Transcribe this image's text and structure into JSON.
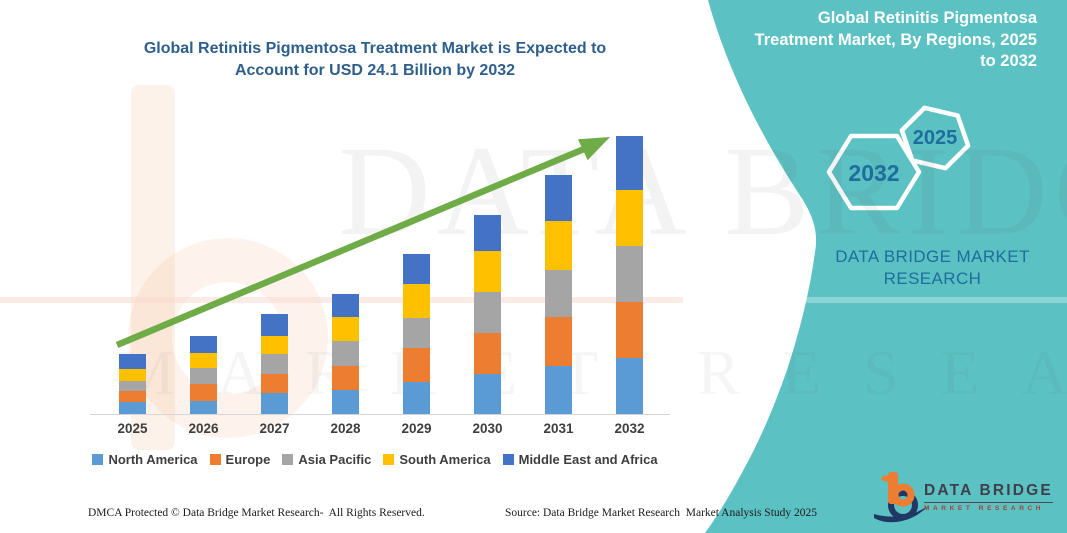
{
  "main_title_line1": "Global Retinitis Pigmentosa Treatment Market is Expected to",
  "main_title_line2": "Account for USD 24.1 Billion by 2032",
  "chart_data": {
    "type": "bar",
    "stacked": true,
    "title": "Global Retinitis Pigmentosa Treatment Market is Expected to Account for USD 24.1 Billion by 2032",
    "unit": "USD Billion",
    "categories": [
      "2025",
      "2026",
      "2027",
      "2028",
      "2029",
      "2030",
      "2031",
      "2032"
    ],
    "series": [
      {
        "name": "North America",
        "color": "#5B9BD5",
        "values": [
          1.0,
          1.1,
          1.8,
          2.1,
          2.8,
          3.5,
          4.2,
          4.9
        ]
      },
      {
        "name": "Europe",
        "color": "#ED7D31",
        "values": [
          1.0,
          1.5,
          1.7,
          2.1,
          2.9,
          3.5,
          4.2,
          4.8
        ]
      },
      {
        "name": "Asia Pacific",
        "color": "#A5A5A5",
        "values": [
          0.9,
          1.4,
          1.7,
          2.1,
          2.6,
          3.6,
          4.1,
          4.9
        ]
      },
      {
        "name": "South America",
        "color": "#FFC000",
        "values": [
          1.0,
          1.3,
          1.6,
          2.1,
          3.0,
          3.5,
          4.2,
          4.8
        ]
      },
      {
        "name": "Middle East and Africa",
        "color": "#4472C4",
        "values": [
          1.3,
          1.5,
          1.9,
          2.0,
          2.6,
          3.2,
          4.0,
          4.7
        ]
      }
    ],
    "totals": [
      5.2,
      6.8,
      8.7,
      10.4,
      13.9,
      17.3,
      20.7,
      24.1
    ],
    "ylim": [
      0,
      24.1
    ],
    "y_axis_visible": false,
    "gridlines": false,
    "legend_position": "bottom",
    "trend_arrow": {
      "present": true,
      "color": "#6FAC47",
      "direction": "up-right"
    }
  },
  "side_panel": {
    "background_color": "#5CC1C3",
    "heading_lines": [
      "Global Retinitis Pigmentosa",
      "Treatment Market, By Regions, 2025",
      "to 2032"
    ],
    "hexagon_back_label": "2032",
    "hexagon_front_label": "2025",
    "brand_line1": "DATA BRIDGE MARKET",
    "brand_line2": "RESEARCH"
  },
  "watermark": {
    "line1": "DATA BRIDGE",
    "line2": "MARKET RESEARCH"
  },
  "footer": {
    "dmca": "DMCA Protected © Data Bridge Market Research-  All Rights Reserved.",
    "source": "Source: Data Bridge Market Research  Market Analysis Study 2025"
  },
  "logo": {
    "name": "DATA BRIDGE",
    "tagline": "MARKET  RESEARCH",
    "orange": "#ED7D31",
    "navy": "#1F3864"
  }
}
